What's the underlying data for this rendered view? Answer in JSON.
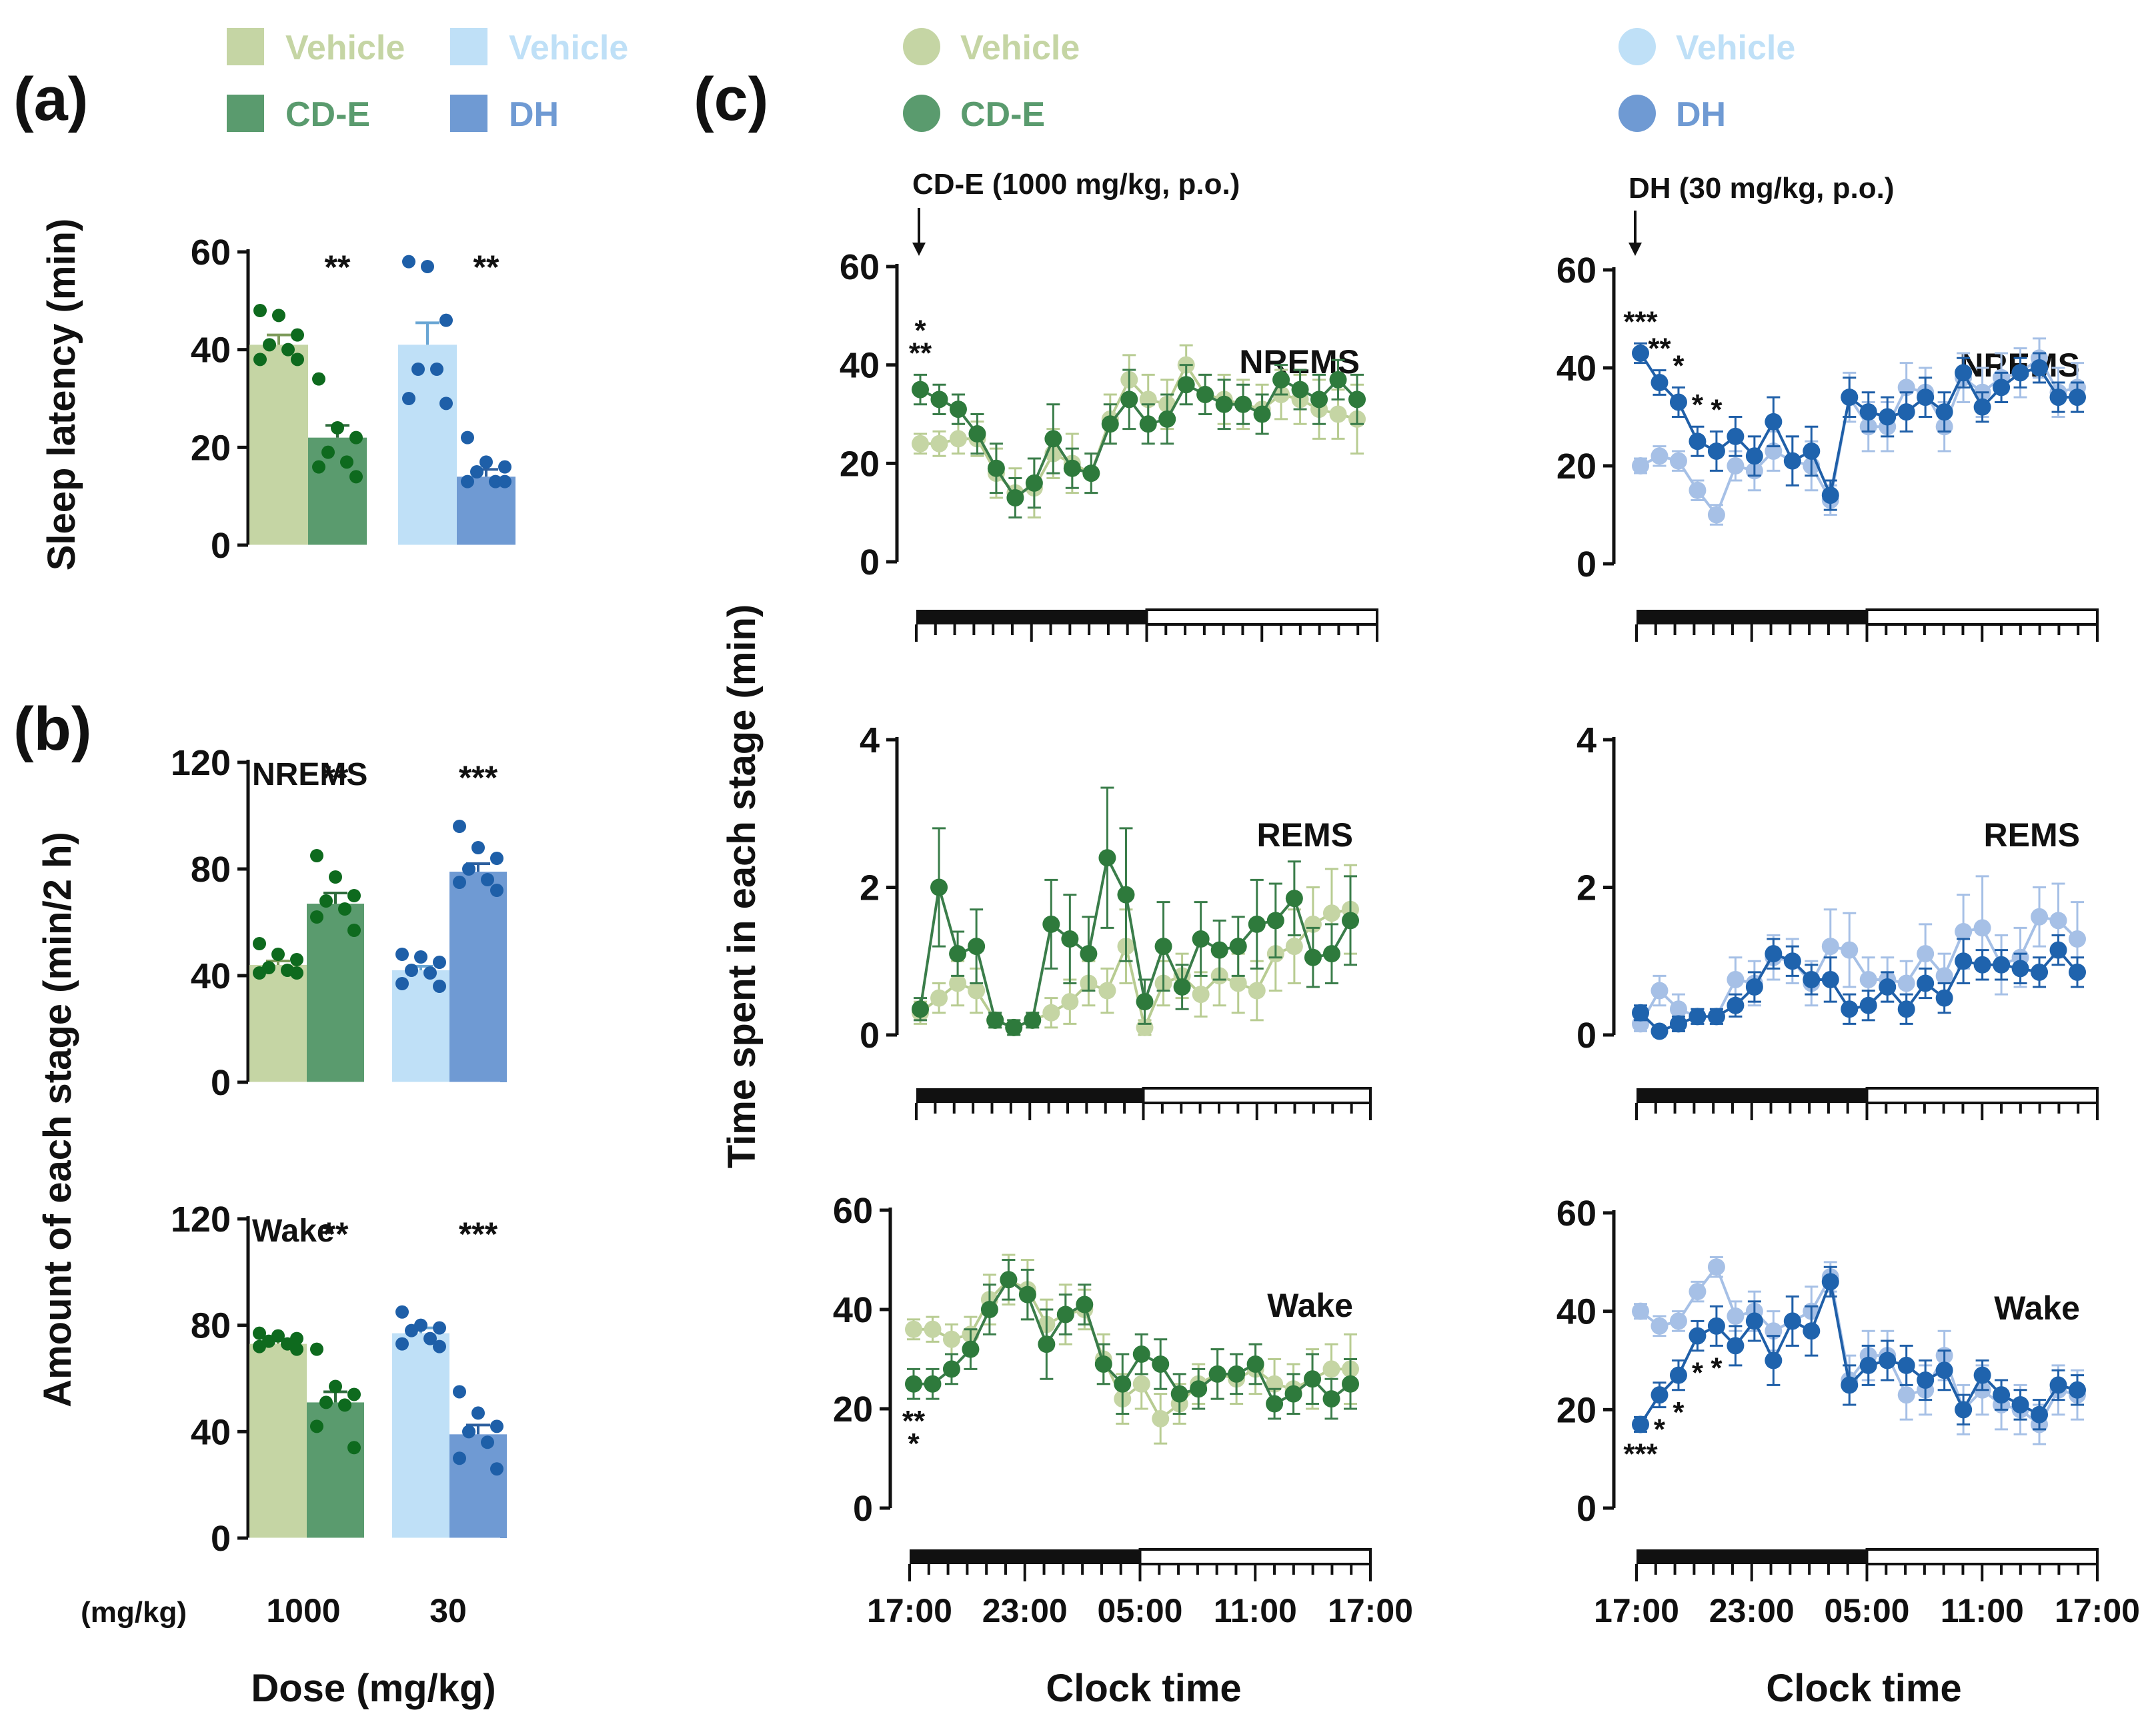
{
  "panel_labels": {
    "a": "(a)",
    "b": "(b)",
    "c": "(c)"
  },
  "colors": {
    "ce_vehicle": "#c5d5a4",
    "ce": "#5a9b6e",
    "ce_dark": "#2e7a3c",
    "ce_dot": "#0e6a1e",
    "dh_vehicle": "#bfe0f7",
    "dh": "#6f9ad3",
    "dh_dark": "#1f63ad",
    "dh_dot": "#1e5fa8",
    "dh_light_line": "#a6c0e6"
  },
  "legend_ab": {
    "ce_vehicle": "Vehicle",
    "ce": "CD-E",
    "dh_vehicle": "Vehicle",
    "dh": "DH"
  },
  "legend_c_left": {
    "vehicle": "Vehicle",
    "drug": "CD-E"
  },
  "legend_c_right": {
    "vehicle": "Vehicle",
    "drug": "DH"
  },
  "bar_panels": {
    "dose_unit_label": "(mg/kg)",
    "dose_labels": [
      "1000",
      "30"
    ],
    "xlabel": "Dose (mg/kg)",
    "ylabel_a": "Sleep latency (min)",
    "ylabel_b": "Amount of each stage (min/2 h)"
  },
  "line_panels": {
    "ylabel": "Time spent in each stage (min)",
    "xlabel": "Clock time",
    "time_ticks": [
      "17:00",
      "23:00",
      "05:00",
      "11:00",
      "17:00"
    ],
    "annot_left": "CD-E (1000 mg/kg, p.o.)",
    "annot_right": "DH (30 mg/kg, p.o.)"
  },
  "chart_data": [
    {
      "id": "a",
      "type": "bar",
      "title": "",
      "ylabel": "Sleep latency (min)",
      "xlabel": "Dose (mg/kg)",
      "ylim": [
        0,
        60
      ],
      "yticks": [
        0,
        20,
        40,
        60
      ],
      "yticklabels": [
        "0",
        "20",
        "40",
        "60"
      ],
      "categories": [
        "1000",
        "30"
      ],
      "bars": [
        {
          "name": "Vehicle",
          "group": "CD-E",
          "value": 41,
          "sem": 2,
          "points": [
            48,
            47,
            43,
            41,
            40,
            38,
            38
          ],
          "sig": ""
        },
        {
          "name": "CD-E",
          "group": "CD-E",
          "value": 22,
          "sem": 2.5,
          "points": [
            34,
            24,
            22,
            19,
            17,
            16,
            14
          ],
          "sig": "**"
        },
        {
          "name": "Vehicle",
          "group": "DH",
          "value": 41,
          "sem": 4.5,
          "points": [
            58,
            57,
            46,
            36,
            36,
            30,
            29
          ],
          "sig": ""
        },
        {
          "name": "DH",
          "group": "DH",
          "value": 14,
          "sem": 1.5,
          "points": [
            22,
            17,
            16,
            15,
            13,
            13,
            13
          ],
          "sig": "**"
        }
      ]
    },
    {
      "id": "b-nrems",
      "type": "bar",
      "title": "NREMS",
      "ylabel": "Amount of each stage (min/2 h)",
      "ylim": [
        0,
        120
      ],
      "yticks": [
        0,
        40,
        80,
        120
      ],
      "yticklabels": [
        "0",
        "40",
        "80",
        "120"
      ],
      "categories": [
        "1000",
        "30"
      ],
      "bars": [
        {
          "name": "Vehicle",
          "group": "CD-E",
          "value": 44,
          "sem": 1.5,
          "points": [
            52,
            48,
            46,
            43,
            42,
            41,
            41
          ],
          "sig": ""
        },
        {
          "name": "CD-E",
          "group": "CD-E",
          "value": 67,
          "sem": 4,
          "points": [
            85,
            77,
            70,
            68,
            65,
            62,
            57
          ],
          "sig": "**"
        },
        {
          "name": "Vehicle",
          "group": "DH",
          "value": 42,
          "sem": 1.5,
          "points": [
            48,
            47,
            45,
            42,
            41,
            37,
            36
          ],
          "sig": ""
        },
        {
          "name": "DH",
          "group": "DH",
          "value": 79,
          "sem": 3,
          "points": [
            96,
            88,
            84,
            80,
            76,
            75,
            72
          ],
          "sig": "***"
        }
      ]
    },
    {
      "id": "b-wake",
      "type": "bar",
      "title": "Wake",
      "ylim": [
        0,
        120
      ],
      "yticks": [
        0,
        40,
        80,
        120
      ],
      "yticklabels": [
        "0",
        "40",
        "80",
        "120"
      ],
      "categories": [
        "1000",
        "30"
      ],
      "bars": [
        {
          "name": "Vehicle",
          "group": "CD-E",
          "value": 73,
          "sem": 1.5,
          "points": [
            77,
            76,
            75,
            74,
            73,
            72,
            71
          ],
          "sig": ""
        },
        {
          "name": "CD-E",
          "group": "CD-E",
          "value": 51,
          "sem": 4,
          "points": [
            71,
            57,
            54,
            51,
            50,
            42,
            34
          ],
          "sig": "**"
        },
        {
          "name": "Vehicle",
          "group": "DH",
          "value": 77,
          "sem": 2,
          "points": [
            85,
            80,
            79,
            78,
            75,
            73,
            72
          ],
          "sig": ""
        },
        {
          "name": "DH",
          "group": "DH",
          "value": 39,
          "sem": 3.5,
          "points": [
            55,
            47,
            42,
            40,
            36,
            30,
            26
          ],
          "sig": "***"
        }
      ]
    },
    {
      "id": "c-ce-nrems",
      "type": "line",
      "label": "NREMS",
      "ylim": [
        0,
        60
      ],
      "yticks": [
        0,
        20,
        40,
        60
      ],
      "yticklabels": [
        "0",
        "20",
        "40",
        "60"
      ],
      "xlabel": "Clock time",
      "x_hours": "0-23 (hourly from 17:00)",
      "series": [
        {
          "name": "Vehicle",
          "values": [
            24,
            24,
            25,
            25,
            18,
            14,
            15,
            22,
            20,
            18,
            29,
            37,
            33,
            32,
            40,
            34,
            33,
            32,
            31,
            34,
            33,
            31,
            30,
            29
          ],
          "errors": [
            2,
            2.5,
            3,
            3.5,
            5,
            5,
            6,
            5,
            6,
            4,
            5,
            5,
            5,
            5,
            4,
            4,
            5,
            5,
            5,
            5,
            5,
            6,
            5,
            7
          ]
        },
        {
          "name": "CD-E",
          "values": [
            35,
            33,
            31,
            26,
            19,
            13,
            16,
            25,
            19,
            18,
            28,
            33,
            28,
            29,
            36,
            34,
            32,
            32,
            30,
            37,
            35,
            33,
            37,
            33
          ],
          "errors": [
            3,
            3,
            3,
            4,
            5,
            4,
            5,
            7,
            4,
            4,
            4,
            6,
            4,
            5,
            4,
            4,
            5,
            4,
            4,
            3,
            4,
            5,
            4,
            5
          ]
        }
      ],
      "significance": [
        {
          "hour": 0,
          "marks": "* **"
        }
      ]
    },
    {
      "id": "c-ce-rems",
      "type": "line",
      "label": "REMS",
      "ylim": [
        0,
        4
      ],
      "yticks": [
        0,
        2,
        4
      ],
      "yticklabels": [
        "0",
        "2",
        "4"
      ],
      "series": [
        {
          "name": "Vehicle",
          "values": [
            0.3,
            0.5,
            0.7,
            0.6,
            0.2,
            0.1,
            0.2,
            0.3,
            0.45,
            0.7,
            0.6,
            1.2,
            0.1,
            0.7,
            0.8,
            0.55,
            0.8,
            0.7,
            0.6,
            1.1,
            1.2,
            1.5,
            1.65,
            1.7
          ],
          "errors": [
            0.15,
            0.2,
            0.3,
            0.3,
            0.1,
            0.1,
            0.1,
            0.2,
            0.3,
            0.3,
            0.3,
            0.5,
            0.1,
            0.3,
            0.3,
            0.3,
            0.4,
            0.4,
            0.4,
            0.5,
            0.5,
            0.5,
            0.6,
            0.6
          ]
        },
        {
          "name": "CD-E",
          "values": [
            0.35,
            2.0,
            1.1,
            1.2,
            0.2,
            0.1,
            0.2,
            1.5,
            1.3,
            1.1,
            2.4,
            1.9,
            0.45,
            1.2,
            0.65,
            1.3,
            1.15,
            1.2,
            1.5,
            1.55,
            1.85,
            1.05,
            1.1,
            1.55
          ],
          "errors": [
            0.15,
            0.8,
            0.3,
            0.5,
            0.1,
            0.1,
            0.1,
            0.6,
            0.6,
            0.5,
            0.95,
            0.9,
            0.3,
            0.6,
            0.3,
            0.5,
            0.4,
            0.4,
            0.6,
            0.5,
            0.5,
            0.4,
            0.4,
            0.6
          ]
        }
      ]
    },
    {
      "id": "c-ce-wake",
      "type": "line",
      "label": "Wake",
      "ylim": [
        0,
        60
      ],
      "yticks": [
        0,
        20,
        40,
        60
      ],
      "yticklabels": [
        "0",
        "20",
        "40",
        "60"
      ],
      "series": [
        {
          "name": "Vehicle",
          "values": [
            36,
            36,
            34,
            35,
            42,
            46,
            44,
            37,
            39,
            40,
            30,
            22,
            25,
            18,
            21,
            25,
            27,
            26,
            28,
            25,
            24,
            26,
            28,
            28
          ],
          "errors": [
            2,
            2.5,
            3,
            3.5,
            5,
            5,
            6,
            5,
            6,
            4,
            5,
            5,
            5,
            5,
            4,
            4,
            5,
            5,
            5,
            5,
            5,
            6,
            5,
            7
          ]
        },
        {
          "name": "CD-E",
          "values": [
            25,
            25,
            28,
            32,
            40,
            46,
            43,
            33,
            39,
            41,
            29,
            25,
            31,
            29,
            23,
            24,
            27,
            27,
            29,
            21,
            23,
            26,
            22,
            25
          ],
          "errors": [
            3,
            3,
            3,
            4,
            5,
            4,
            5,
            7,
            4,
            4,
            4,
            6,
            4,
            5,
            4,
            4,
            5,
            4,
            4,
            3,
            4,
            5,
            4,
            5
          ]
        }
      ],
      "significance": [
        {
          "hour": 0,
          "marks": "** *"
        }
      ]
    },
    {
      "id": "c-dh-nrems",
      "type": "line",
      "label": "NREMS",
      "ylim": [
        0,
        60
      ],
      "yticks": [
        0,
        20,
        40,
        60
      ],
      "yticklabels": [
        "0",
        "20",
        "40",
        "60"
      ],
      "series": [
        {
          "name": "Vehicle",
          "values": [
            20,
            22,
            21,
            15,
            10,
            20,
            19,
            23,
            21,
            20,
            13,
            34,
            28,
            28,
            36,
            35,
            28,
            38,
            35,
            38,
            39,
            42,
            35,
            36
          ],
          "errors": [
            1.5,
            2,
            2,
            2,
            2,
            3,
            4,
            4,
            5,
            5,
            3,
            5,
            5,
            5,
            5,
            5,
            5,
            5,
            5,
            5,
            5,
            4,
            5,
            5
          ]
        },
        {
          "name": "DH",
          "values": [
            43,
            37,
            33,
            25,
            23,
            26,
            22,
            29,
            21,
            23,
            14,
            34,
            31,
            30,
            31,
            34,
            31,
            39,
            32,
            36,
            39,
            40,
            34,
            34
          ],
          "errors": [
            2,
            2.5,
            3,
            3,
            4,
            4,
            4,
            5,
            5,
            5,
            3,
            4,
            4,
            4,
            4,
            4,
            4,
            3,
            3,
            3,
            3,
            3,
            3,
            3
          ]
        }
      ],
      "significance": [
        {
          "hour": 0,
          "marks": "***"
        },
        {
          "hour": 1,
          "marks": "**"
        },
        {
          "hour": 2,
          "marks": "*"
        },
        {
          "hour": 3,
          "marks": "*"
        },
        {
          "hour": 4,
          "marks": "*"
        }
      ]
    },
    {
      "id": "c-dh-rems",
      "type": "line",
      "label": "REMS",
      "ylim": [
        0,
        4
      ],
      "yticks": [
        0,
        2,
        4
      ],
      "yticklabels": [
        "0",
        "2",
        "4"
      ],
      "series": [
        {
          "name": "Vehicle",
          "values": [
            0.15,
            0.6,
            0.35,
            0.25,
            0.25,
            0.75,
            0.7,
            1.05,
            1.0,
            0.7,
            1.2,
            1.15,
            0.75,
            0.75,
            0.7,
            1.1,
            0.8,
            1.4,
            1.45,
            0.95,
            1.05,
            1.6,
            1.55,
            1.3
          ],
          "errors": [
            0.1,
            0.2,
            0.2,
            0.1,
            0.1,
            0.3,
            0.3,
            0.3,
            0.3,
            0.3,
            0.5,
            0.5,
            0.3,
            0.3,
            0.3,
            0.4,
            0.3,
            0.5,
            0.7,
            0.4,
            0.4,
            0.4,
            0.5,
            0.5
          ]
        },
        {
          "name": "DH",
          "values": [
            0.3,
            0.05,
            0.15,
            0.25,
            0.25,
            0.4,
            0.65,
            1.1,
            1.0,
            0.75,
            0.75,
            0.35,
            0.4,
            0.65,
            0.35,
            0.7,
            0.5,
            1.0,
            0.95,
            0.95,
            0.9,
            0.85,
            1.15,
            0.85
          ]
        },
        {
          "name": "_err",
          "values": []
        }
      ],
      "dh_errors": [
        0.1,
        0.05,
        0.1,
        0.1,
        0.1,
        0.15,
        0.2,
        0.2,
        0.2,
        0.2,
        0.3,
        0.2,
        0.2,
        0.2,
        0.2,
        0.2,
        0.2,
        0.3,
        0.2,
        0.2,
        0.2,
        0.2,
        0.2,
        0.2
      ]
    },
    {
      "id": "c-dh-wake",
      "type": "line",
      "label": "Wake",
      "ylim": [
        0,
        60
      ],
      "yticks": [
        0,
        20,
        40,
        60
      ],
      "yticklabels": [
        "0",
        "20",
        "40",
        "60"
      ],
      "series": [
        {
          "name": "Vehicle",
          "values": [
            40,
            37,
            38,
            44,
            49,
            39,
            40,
            36,
            38,
            40,
            47,
            26,
            31,
            31,
            23,
            24,
            31,
            20,
            24,
            21,
            20,
            17,
            24,
            23
          ],
          "errors": [
            1.5,
            2,
            2,
            2,
            2,
            3,
            4,
            4,
            5,
            5,
            3,
            5,
            5,
            5,
            5,
            5,
            5,
            5,
            5,
            5,
            5,
            4,
            5,
            5
          ]
        },
        {
          "name": "DH",
          "values": [
            17,
            23,
            27,
            35,
            37,
            33,
            38,
            30,
            38,
            36,
            46,
            25,
            29,
            30,
            29,
            26,
            28,
            20,
            27,
            23,
            21,
            19,
            25,
            24
          ],
          "errors": [
            1.5,
            2.5,
            3,
            3,
            4,
            4,
            4,
            5,
            5,
            5,
            3,
            4,
            4,
            4,
            4,
            4,
            4,
            3,
            3,
            3,
            3,
            3,
            3,
            3
          ]
        }
      ],
      "significance": [
        {
          "hour": 0,
          "marks": "***"
        },
        {
          "hour": 1,
          "marks": "*"
        },
        {
          "hour": 2,
          "marks": "*"
        },
        {
          "hour": 3,
          "marks": "*"
        },
        {
          "hour": 4,
          "marks": "*"
        }
      ]
    }
  ]
}
